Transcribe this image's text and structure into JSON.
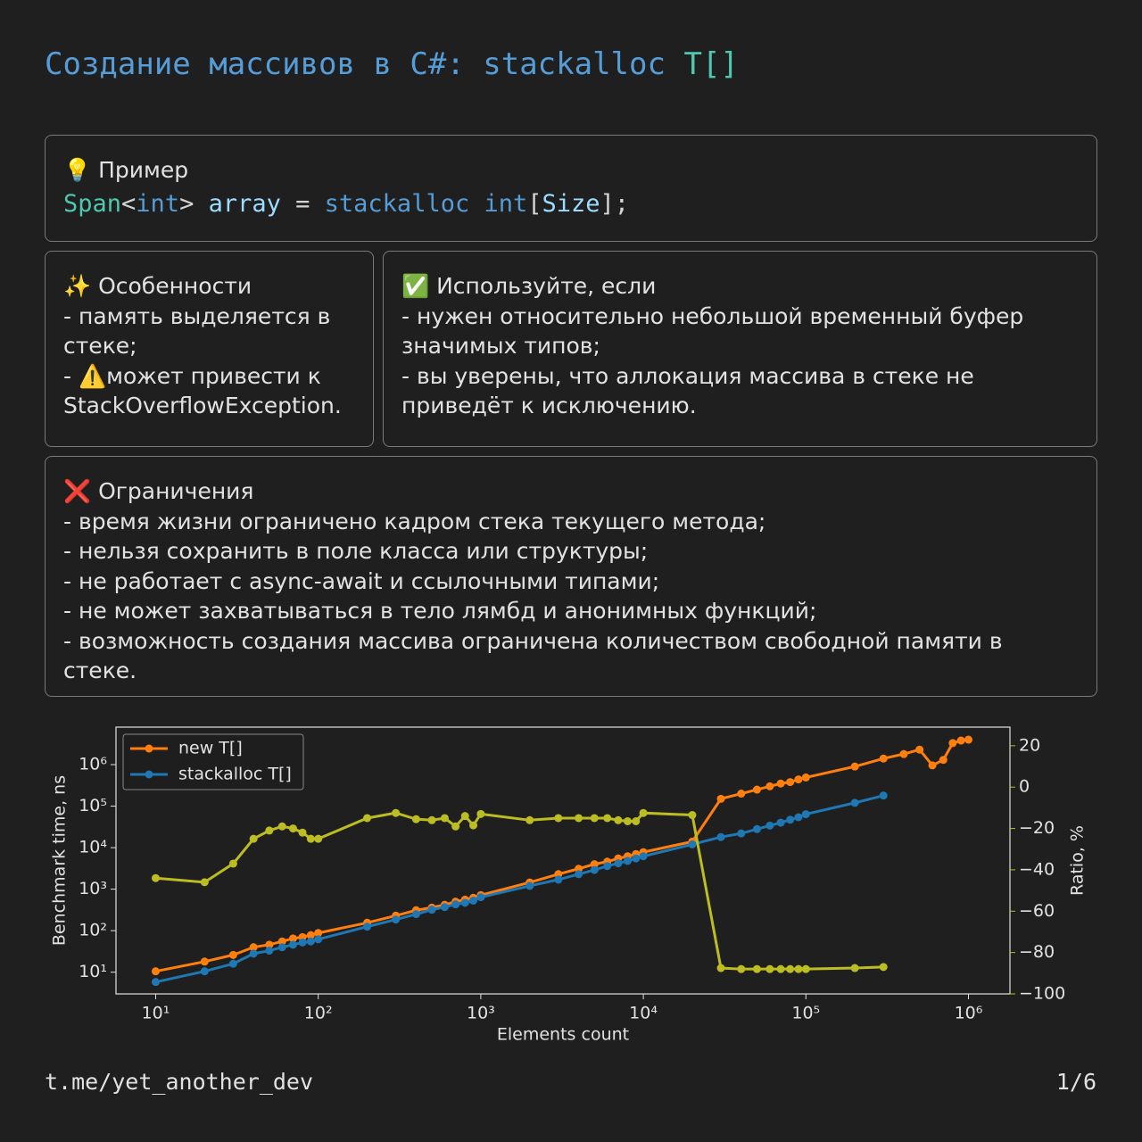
{
  "header": {
    "title": [
      {
        "text": "Создание массивов в C#: stackalloc",
        "color": "#569cd6"
      },
      {
        "text": "T[]",
        "color": "#4ec9b0"
      }
    ]
  },
  "example": {
    "heading": "💡 Пример",
    "code": [
      {
        "text": "Span",
        "color": "#4ec9b0"
      },
      {
        "text": "<",
        "color": "#d4d4d4"
      },
      {
        "text": "int",
        "color": "#569cd6"
      },
      {
        "text": "> ",
        "color": "#d4d4d4"
      },
      {
        "text": "array",
        "color": "#9cdcfe"
      },
      {
        "text": " = ",
        "color": "#d4d4d4"
      },
      {
        "text": "stackalloc",
        "color": "#569cd6"
      },
      {
        "text": " int",
        "color": "#569cd6"
      },
      {
        "text": "[",
        "color": "#d4d4d4"
      },
      {
        "text": "Size",
        "color": "#9cdcfe"
      },
      {
        "text": "];",
        "color": "#d4d4d4"
      }
    ]
  },
  "features": {
    "heading": "✨ Особенности",
    "items": [
      "- память выделяется в стеке;",
      "- ⚠️может привести к StackOverflowException."
    ]
  },
  "use_if": {
    "heading": "✅ Используйте, если",
    "items": [
      "- нужен относительно небольшой временный буфер значимых типов;",
      "- вы уверены, что аллокация массива в стеке не приведёт к исключению."
    ]
  },
  "limitations": {
    "heading": "❌ Ограничения",
    "items": [
      "- время жизни ограничено кадром стека текущего метода;",
      "- нельзя сохранить в поле класса или структуры;",
      "- не работает с async-await и ссылочными типами;",
      "- не может захватываться в тело лямбд и анонимных функций;",
      "- возможность создания массива ограничена количеством свободной памяти в стеке."
    ]
  },
  "footer": {
    "link": "t.me/yet_another_dev",
    "page": "1/6"
  },
  "chart_data": {
    "type": "line",
    "xlabel": "Elements count",
    "ylabel": "Benchmark time, ns",
    "y2label": "Ratio, %",
    "xscale": "log",
    "yscale": "log",
    "legend": "upper left",
    "xlim": [
      5.7,
      1800000
    ],
    "ylim": [
      3,
      8000000
    ],
    "y2lim": [
      -100,
      29
    ],
    "xticks": [
      {
        "value": 10,
        "label": "10¹"
      },
      {
        "value": 100,
        "label": "10²"
      },
      {
        "value": 1000,
        "label": "10³"
      },
      {
        "value": 10000,
        "label": "10⁴"
      },
      {
        "value": 100000,
        "label": "10⁵"
      },
      {
        "value": 1000000,
        "label": "10⁶"
      }
    ],
    "yticks": [
      {
        "value": 10,
        "label": "10¹"
      },
      {
        "value": 100,
        "label": "10²"
      },
      {
        "value": 1000,
        "label": "10³"
      },
      {
        "value": 10000,
        "label": "10⁴"
      },
      {
        "value": 100000,
        "label": "10⁵"
      },
      {
        "value": 1000000,
        "label": "10⁶"
      }
    ],
    "y2ticks": [
      {
        "value": 20,
        "label": "20"
      },
      {
        "value": 0,
        "label": "0"
      },
      {
        "value": -20,
        "label": "−20"
      },
      {
        "value": -40,
        "label": "−40"
      },
      {
        "value": -60,
        "label": "−60"
      },
      {
        "value": -80,
        "label": "−80"
      },
      {
        "value": -100,
        "label": "−100"
      }
    ],
    "x": [
      10,
      20,
      30,
      40,
      50,
      60,
      70,
      80,
      90,
      100,
      200,
      300,
      400,
      500,
      600,
      700,
      800,
      900,
      1000,
      2000,
      3000,
      4000,
      5000,
      6000,
      7000,
      8000,
      9000,
      10000,
      20000,
      30000,
      40000,
      50000,
      60000,
      70000,
      80000,
      90000,
      100000,
      200000,
      300000,
      400000,
      500000,
      600000,
      700000,
      800000,
      900000,
      1000000
    ],
    "series": [
      {
        "name": "new T[]",
        "color": "#ff7f0e",
        "values": [
          10.5,
          18,
          26,
          40,
          46,
          55,
          65,
          70,
          78,
          88,
          155,
          230,
          310,
          360,
          420,
          500,
          560,
          620,
          720,
          1450,
          2300,
          3100,
          4000,
          4600,
          5500,
          6200,
          7000,
          7800,
          14000,
          150000,
          200000,
          250000,
          300000,
          350000,
          380000,
          440000,
          490000,
          900000,
          1400000,
          1800000,
          2300000,
          960000,
          1300000,
          3300000,
          3800000,
          4000000
        ]
      },
      {
        "name": "stackalloc T[]",
        "color": "#1f77b4",
        "values": [
          5.8,
          10.5,
          16,
          28,
          33,
          40,
          46,
          52,
          55,
          62,
          125,
          185,
          250,
          320,
          370,
          430,
          470,
          530,
          640,
          1200,
          1700,
          2300,
          2900,
          3600,
          4200,
          4800,
          5500,
          6200,
          12000,
          18000,
          22000,
          28000,
          34000,
          40000,
          47000,
          54000,
          64000,
          120000,
          180000,
          null,
          null,
          null,
          null,
          null,
          null,
          null
        ]
      },
      {
        "axis": "y2",
        "color": "#bcbd22",
        "values": [
          -44,
          -46,
          -37,
          -25,
          -21,
          -19,
          -20,
          -22,
          -25,
          -25,
          -15,
          -12.5,
          -15.5,
          -16,
          -15,
          -19,
          -14,
          -18.5,
          -13,
          -16,
          -15,
          -15,
          -15,
          -15,
          -16,
          -16.5,
          -16.5,
          -12.5,
          -13.5,
          -87.5,
          -88,
          -88,
          -88,
          -88,
          -88,
          -88,
          -88,
          -87.5,
          -87,
          null,
          null,
          null,
          null,
          null,
          null,
          null
        ]
      }
    ]
  }
}
